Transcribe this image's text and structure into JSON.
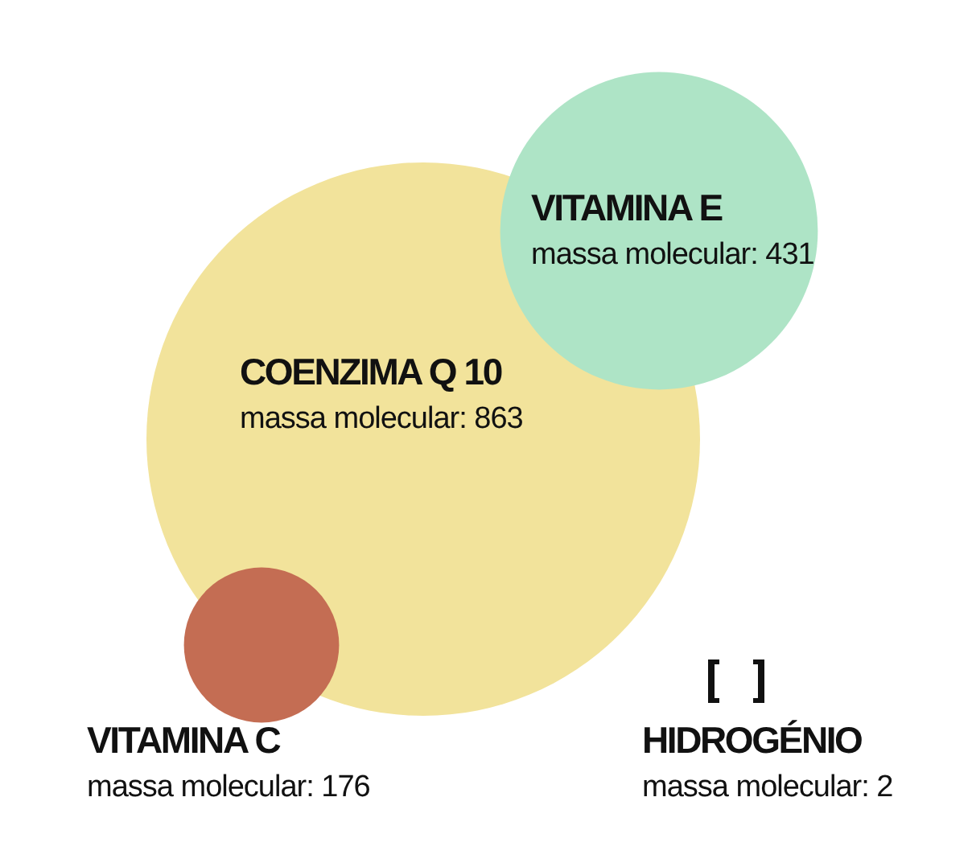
{
  "chart_data": {
    "type": "other",
    "categories": [
      "COENZIMA Q 10",
      "VITAMINA E",
      "VITAMINA C",
      "HIDROGÉNIO"
    ],
    "values": [
      863,
      431,
      176,
      2
    ],
    "colors": [
      "#f2e39b",
      "#aee4c6",
      "#c46d53",
      null
    ],
    "value_labels": [
      "massa molecular: 863",
      "massa molecular: 431",
      "massa molecular: 176",
      "massa molecular: 2"
    ]
  }
}
